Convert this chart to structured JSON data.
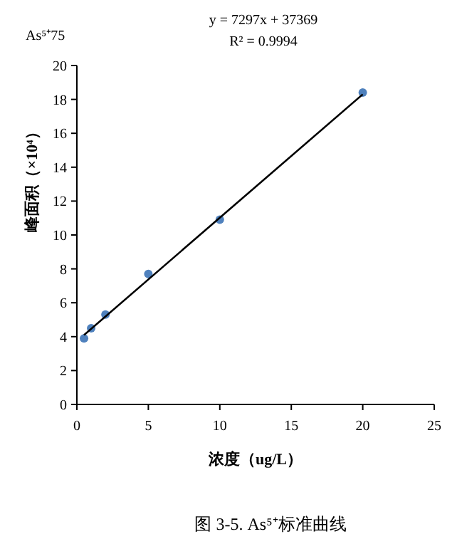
{
  "chart_data": {
    "type": "scatter",
    "xlabel": "浓度（ug/L）",
    "ylabel": "峰面积（×10⁴）",
    "annotations": [
      "As⁵⁺75",
      "y = 7297x + 37369",
      "R² = 0.9994",
      "图 3-5. As⁵⁺标准曲线"
    ],
    "x": [
      0.5,
      1,
      2,
      5,
      10,
      20
    ],
    "series": [
      {
        "color": "#4f81bd",
        "marker": "circle",
        "values": [
          3.9,
          4.5,
          5.3,
          7.7,
          10.9,
          18.4
        ]
      },
      {
        "type": "line",
        "color": "#000000",
        "marker": "none",
        "x": [
          0.5,
          20
        ],
        "values": [
          4.1,
          18.3
        ]
      }
    ],
    "xlim": [
      0,
      25
    ],
    "xticks": [
      0,
      5,
      10,
      15,
      20,
      25
    ],
    "ylim": [
      0,
      20
    ],
    "yticks": [
      0,
      2,
      4,
      6,
      8,
      10,
      12,
      14,
      16,
      18,
      20
    ],
    "grid": false
  }
}
